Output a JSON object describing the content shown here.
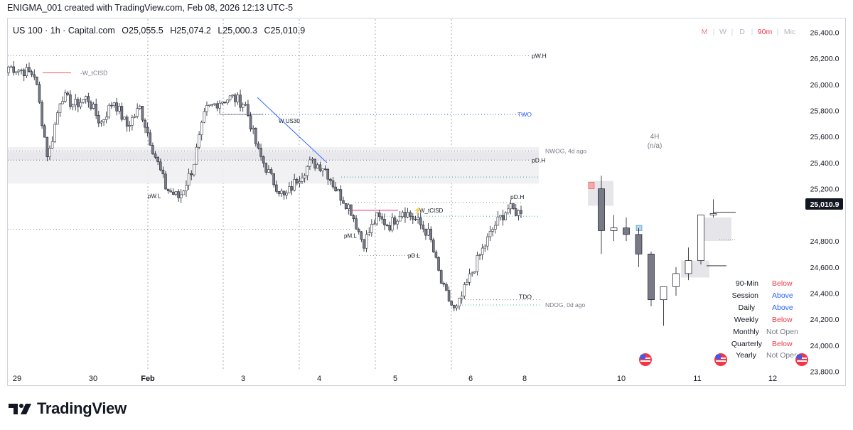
{
  "header": {
    "caption": "ENIGMA_001 created with TradingView.com, Feb 08, 2026 12:13 UTC-5"
  },
  "chart_header": {
    "symbol": "US 100 · 1h · Capital.com",
    "ohlc_labels": [
      "O",
      "H",
      "L",
      "C"
    ],
    "ohlc_values": [
      "25,055.5",
      "25,074.2",
      "25,000.3",
      "25,010.9"
    ]
  },
  "timeframes": {
    "items": [
      "M",
      "W",
      "D",
      "90m",
      "Mic"
    ],
    "separator": "|",
    "colors": [
      "#f08080",
      "#b2b5be",
      "#b2b5be",
      "#f23645",
      "#b2b5be"
    ]
  },
  "last_price": {
    "label": "25,010.9",
    "value": 25010.9
  },
  "levels": [
    {
      "label": "pW.H",
      "value": 26220
    },
    {
      "label": "-W_tCISD",
      "value": 26090
    },
    {
      "label": "TWO",
      "value": 25770
    },
    {
      "label": "W US30",
      "value": 25720
    },
    {
      "label": "NWOG, 4d ago",
      "value": 25490
    },
    {
      "label": "pD.H",
      "value": 25420
    },
    {
      "label": "pW.L",
      "value": 25145
    },
    {
      "label": "pD.H",
      "value": 25095
    },
    {
      "label": "W_tCISD",
      "value": 25035
    },
    {
      "label": "pM.L",
      "value": 24840
    },
    {
      "label": "pD.L",
      "value": 24690
    },
    {
      "label": "TDO",
      "value": 24350
    },
    {
      "label": "NDOG, 0d ago",
      "value": 24310
    }
  ],
  "htf_label": {
    "title": "4H",
    "subtitle": "(n/a)"
  },
  "bias_table": {
    "rows": [
      {
        "label": "90-Min",
        "value": "Below",
        "color": "#f23645"
      },
      {
        "label": "Session",
        "value": "Above",
        "color": "#2962ff"
      },
      {
        "label": "Daily",
        "value": "Above",
        "color": "#2962ff"
      },
      {
        "label": "Weekly",
        "value": "Below",
        "color": "#f23645"
      },
      {
        "label": "Monthly",
        "value": "Not Open",
        "color": "#787b86"
      },
      {
        "label": "Quarterly",
        "value": "Below",
        "color": "#f23645"
      },
      {
        "label": "Yearly",
        "value": "Not Open",
        "color": "#787b86"
      }
    ]
  },
  "footer": {
    "brand": "TradingView"
  },
  "chart_data": {
    "type": "candlestick",
    "ylim": [
      23700,
      26500
    ],
    "y_ticks": [
      {
        "label": "26,400.0",
        "value": 26400
      },
      {
        "label": "26,200.0",
        "value": 26200
      },
      {
        "label": "26,000.0",
        "value": 26000
      },
      {
        "label": "25,800.0",
        "value": 25800
      },
      {
        "label": "25,600.0",
        "value": 25600
      },
      {
        "label": "25,400.0",
        "value": 25400
      },
      {
        "label": "25,200.0",
        "value": 25200
      },
      {
        "label": "24,800.0",
        "value": 24800
      },
      {
        "label": "24,600.0",
        "value": 24600
      },
      {
        "label": "24,400.0",
        "value": 24400
      },
      {
        "label": "24,200.0",
        "value": 24200
      },
      {
        "label": "24,000.0",
        "value": 24000
      },
      {
        "label": "23,800.0",
        "value": 23800
      }
    ],
    "x_ticks": [
      "29",
      "30",
      "Feb",
      "3",
      "4",
      "5",
      "6",
      "8",
      "10",
      "11",
      "12"
    ],
    "anchors": [
      {
        "value": 26135,
        "open": 26090
      },
      {
        "value": 26110
      },
      {
        "value": 26075
      },
      {
        "value": 25430
      },
      {
        "value": 25920
      },
      {
        "value": 25840
      },
      {
        "value": 25900
      },
      {
        "value": 25700
      },
      {
        "value": 25880
      },
      {
        "value": 25680
      },
      {
        "value": 25820
      },
      {
        "value": 25500
      },
      {
        "value": 25200
      },
      {
        "value": 25130
      },
      {
        "value": 25360
      },
      {
        "value": 25800
      },
      {
        "value": 25870
      },
      {
        "value": 25900
      },
      {
        "value": 25850
      },
      {
        "value": 25480
      },
      {
        "value": 25280
      },
      {
        "value": 25130
      },
      {
        "value": 25280
      },
      {
        "value": 25400
      },
      {
        "value": 25370
      },
      {
        "value": 25180
      },
      {
        "value": 25050
      },
      {
        "value": 24780
      },
      {
        "value": 24980
      },
      {
        "value": 24920
      },
      {
        "value": 25040
      },
      {
        "value": 24960
      },
      {
        "value": 24850
      },
      {
        "value": 24450
      },
      {
        "value": 24250
      },
      {
        "value": 24500
      },
      {
        "value": 24720
      },
      {
        "value": 24920
      },
      {
        "value": 25050
      },
      {
        "value": 25010.9
      }
    ],
    "seed": 7,
    "htf_candles": [
      {
        "open": 25200,
        "high": 25300,
        "low": 24700,
        "close": 24880
      },
      {
        "open": 24880,
        "high": 25000,
        "low": 24800,
        "close": 24900
      },
      {
        "open": 24900,
        "high": 24980,
        "low": 24800,
        "close": 24850
      },
      {
        "open": 24850,
        "high": 24900,
        "low": 24600,
        "close": 24700
      },
      {
        "open": 24700,
        "high": 24720,
        "low": 24300,
        "close": 24350
      },
      {
        "open": 24350,
        "high": 24450,
        "low": 24150,
        "close": 24450
      },
      {
        "open": 24450,
        "high": 24600,
        "low": 24380,
        "close": 24550
      },
      {
        "open": 24550,
        "high": 24750,
        "low": 24500,
        "close": 24650
      },
      {
        "open": 24650,
        "high": 25000,
        "low": 24620,
        "close": 25000
      },
      {
        "open": 25000,
        "high": 25120,
        "low": 24980,
        "close": 25010
      }
    ],
    "colors": {
      "up": "#ffffff",
      "down": "#787b86",
      "wick": "#131722",
      "current": "#f7a9a8"
    }
  }
}
